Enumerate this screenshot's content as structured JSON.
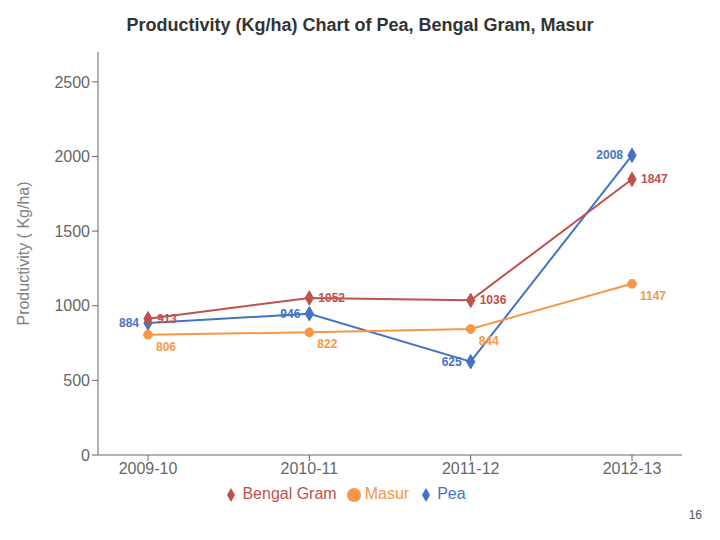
{
  "chart_data": {
    "type": "line",
    "title": "Productivity (Kg/ha) Chart of Pea, Bengal Gram, Masur",
    "ylabel": "Productivity ( Kg/ha)",
    "categories": [
      "2009-10",
      "2010-11",
      "2011-12",
      "2012-13"
    ],
    "series": [
      {
        "name": "Pea",
        "color": "#4472C4",
        "marker": "diamond",
        "values": [
          884,
          946,
          625,
          2008
        ]
      },
      {
        "name": "Bengal Gram",
        "color": "#C0504D",
        "marker": "diamond",
        "values": [
          913,
          1052,
          1036,
          1847
        ]
      },
      {
        "name": "Masur",
        "color": "#F79646",
        "marker": "circle",
        "values": [
          806,
          822,
          844,
          1147
        ]
      }
    ],
    "ylim": [
      0,
      2700
    ],
    "yticks": [
      0,
      500,
      1000,
      1500,
      2000,
      2500
    ],
    "grid": false,
    "legend": "bottom",
    "data_labels": true,
    "annotations": [
      "16"
    ]
  }
}
